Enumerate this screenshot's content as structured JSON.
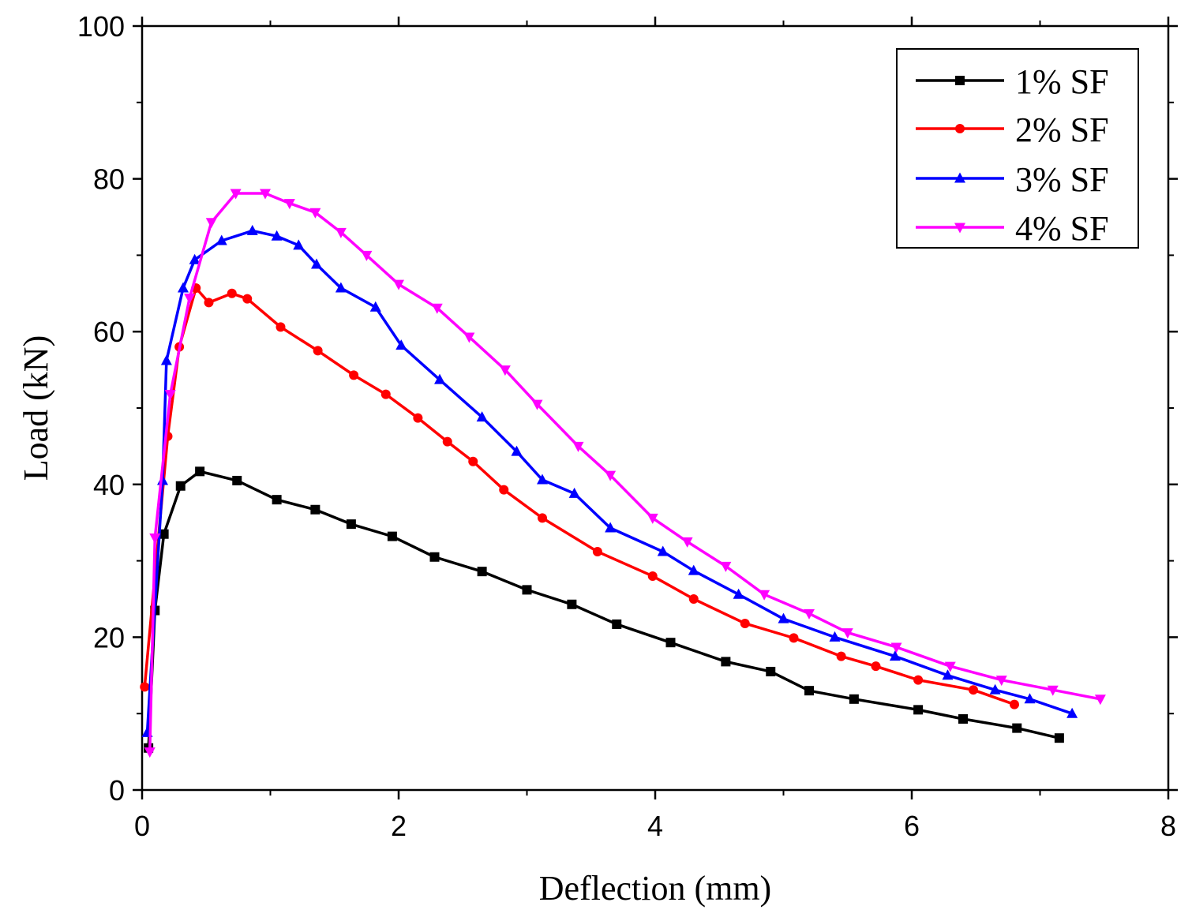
{
  "chart_data": {
    "type": "line",
    "title": "",
    "xlabel": "Deflection (mm)",
    "ylabel": "Load (kN)",
    "xlim": [
      0,
      8
    ],
    "ylim": [
      0,
      100
    ],
    "xticks": [
      0,
      2,
      4,
      6,
      8
    ],
    "yticks": [
      0,
      20,
      40,
      60,
      80,
      100
    ],
    "grid": false,
    "legend_position": "top-right",
    "series": [
      {
        "name": "1% SF",
        "color": "#000000",
        "marker": "square",
        "points": [
          [
            0.05,
            5.5
          ],
          [
            0.1,
            23.5
          ],
          [
            0.17,
            33.5
          ],
          [
            0.3,
            39.8
          ],
          [
            0.45,
            41.7
          ],
          [
            0.74,
            40.5
          ],
          [
            1.05,
            38
          ],
          [
            1.35,
            36.7
          ],
          [
            1.63,
            34.8
          ],
          [
            1.95,
            33.2
          ],
          [
            2.28,
            30.5
          ],
          [
            2.65,
            28.6
          ],
          [
            3.0,
            26.2
          ],
          [
            3.35,
            24.3
          ],
          [
            3.7,
            21.7
          ],
          [
            4.12,
            19.3
          ],
          [
            4.55,
            16.8
          ],
          [
            4.9,
            15.5
          ],
          [
            5.2,
            13
          ],
          [
            5.55,
            11.9
          ],
          [
            6.05,
            10.5
          ],
          [
            6.4,
            9.3
          ],
          [
            6.82,
            8.1
          ],
          [
            7.15,
            6.8
          ]
        ]
      },
      {
        "name": "2% SF",
        "color": "#ff0000",
        "marker": "circle",
        "points": [
          [
            0.02,
            13.5
          ],
          [
            0.2,
            46.3
          ],
          [
            0.29,
            58
          ],
          [
            0.42,
            65.7
          ],
          [
            0.52,
            63.8
          ],
          [
            0.7,
            65
          ],
          [
            0.82,
            64.3
          ],
          [
            1.08,
            60.6
          ],
          [
            1.37,
            57.5
          ],
          [
            1.65,
            54.3
          ],
          [
            1.9,
            51.8
          ],
          [
            2.15,
            48.7
          ],
          [
            2.38,
            45.6
          ],
          [
            2.58,
            43
          ],
          [
            2.82,
            39.3
          ],
          [
            3.12,
            35.6
          ],
          [
            3.55,
            31.2
          ],
          [
            3.98,
            28
          ],
          [
            4.3,
            25
          ],
          [
            4.7,
            21.8
          ],
          [
            5.08,
            19.9
          ],
          [
            5.45,
            17.5
          ],
          [
            5.72,
            16.2
          ],
          [
            6.05,
            14.4
          ],
          [
            6.48,
            13.1
          ],
          [
            6.8,
            11.2
          ]
        ]
      },
      {
        "name": "3% SF",
        "color": "#0000ff",
        "marker": "triangle-up",
        "points": [
          [
            0.04,
            7.5
          ],
          [
            0.16,
            40.5
          ],
          [
            0.19,
            56.2
          ],
          [
            0.32,
            65.7
          ],
          [
            0.41,
            69.4
          ],
          [
            0.62,
            71.9
          ],
          [
            0.86,
            73.2
          ],
          [
            1.05,
            72.5
          ],
          [
            1.22,
            71.3
          ],
          [
            1.36,
            68.8
          ],
          [
            1.55,
            65.7
          ],
          [
            1.82,
            63.2
          ],
          [
            2.02,
            58.2
          ],
          [
            2.32,
            53.7
          ],
          [
            2.65,
            48.8
          ],
          [
            2.92,
            44.3
          ],
          [
            3.12,
            40.6
          ],
          [
            3.37,
            38.8
          ],
          [
            3.65,
            34.3
          ],
          [
            4.06,
            31.2
          ],
          [
            4.3,
            28.7
          ],
          [
            4.65,
            25.6
          ],
          [
            5.0,
            22.4
          ],
          [
            5.4,
            20
          ],
          [
            5.87,
            17.5
          ],
          [
            6.28,
            15
          ],
          [
            6.65,
            13.1
          ],
          [
            6.92,
            11.9
          ],
          [
            7.25,
            10
          ]
        ]
      },
      {
        "name": "4% SF",
        "color": "#ff00ff",
        "marker": "triangle-down",
        "points": [
          [
            0.06,
            5
          ],
          [
            0.1,
            33
          ],
          [
            0.22,
            51.8
          ],
          [
            0.37,
            64.4
          ],
          [
            0.54,
            74.3
          ],
          [
            0.73,
            78.1
          ],
          [
            0.96,
            78.1
          ],
          [
            1.15,
            76.8
          ],
          [
            1.35,
            75.6
          ],
          [
            1.55,
            73
          ],
          [
            1.75,
            70
          ],
          [
            2.0,
            66.2
          ],
          [
            2.3,
            63.1
          ],
          [
            2.55,
            59.3
          ],
          [
            2.83,
            55
          ],
          [
            3.08,
            50.5
          ],
          [
            3.4,
            45
          ],
          [
            3.65,
            41.2
          ],
          [
            3.98,
            35.6
          ],
          [
            4.25,
            32.5
          ],
          [
            4.55,
            29.3
          ],
          [
            4.85,
            25.6
          ],
          [
            5.2,
            23.1
          ],
          [
            5.5,
            20.6
          ],
          [
            5.88,
            18.7
          ],
          [
            6.3,
            16.2
          ],
          [
            6.7,
            14.4
          ],
          [
            7.1,
            13.1
          ],
          [
            7.47,
            11.9
          ]
        ]
      }
    ]
  }
}
